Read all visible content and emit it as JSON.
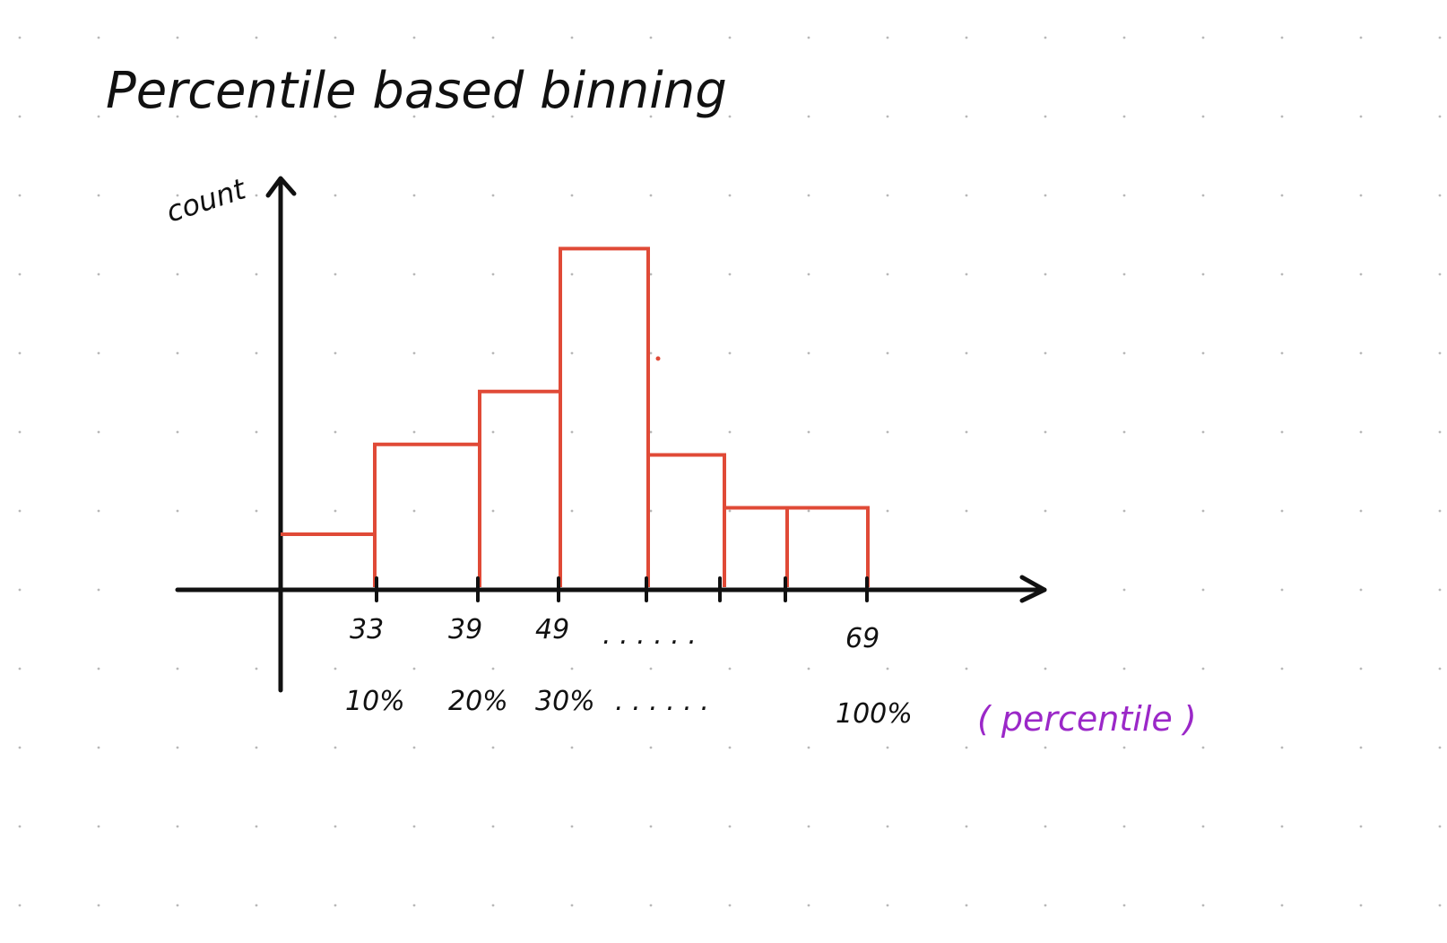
{
  "title": "Percentile based binning",
  "y_axis_label": "count",
  "x_axis_unit_label": "( percentile )",
  "colors": {
    "ink": "#111111",
    "bars": "#e04a37",
    "unit_label": "#9b28c8",
    "grid_dots": "#b8b8b8"
  },
  "chart_data": {
    "type": "bar",
    "bin_heights": [
      1,
      2.7,
      3.7,
      6.4,
      2.5,
      1.5,
      1.5
    ],
    "tick_values": [
      "33",
      "39",
      "49",
      ". . . . . .",
      "69"
    ],
    "percentile_labels": [
      "10%",
      "20%",
      "30%",
      ". . . . . .",
      "100%"
    ]
  }
}
